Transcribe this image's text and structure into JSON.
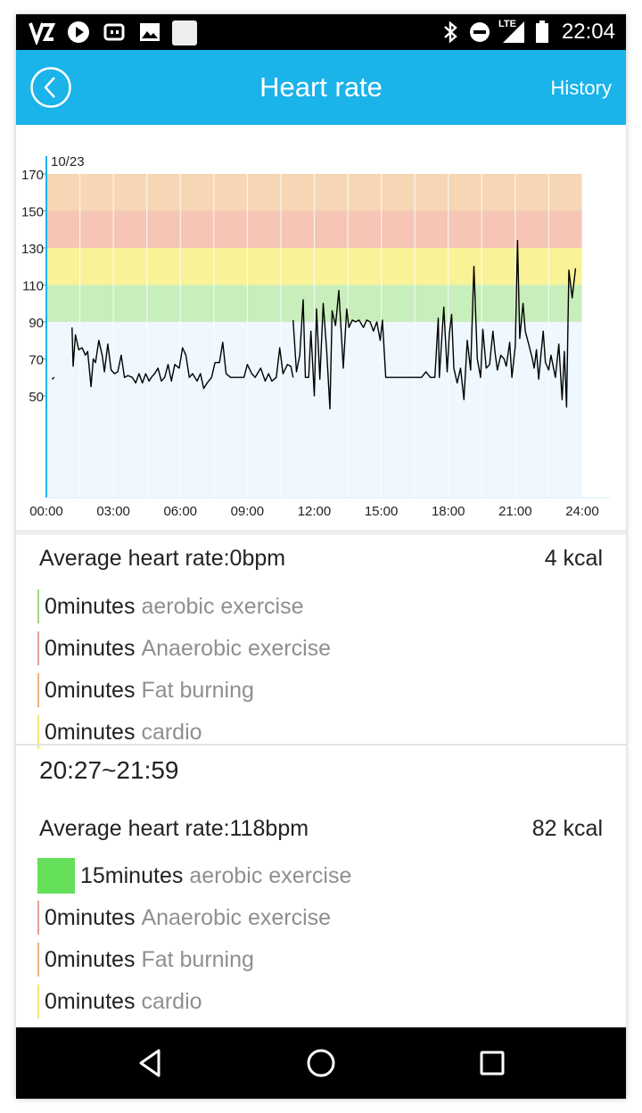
{
  "status_bar": {
    "time": "22:04",
    "network": "LTE",
    "left_icons": [
      "vpn-icon",
      "play-store-icon",
      "sync-icon",
      "image-icon",
      "white-square-icon"
    ],
    "right_icons": [
      "bluetooth-icon",
      "do-not-disturb-icon",
      "signal-icon",
      "battery-icon"
    ]
  },
  "app_bar": {
    "title": "Heart rate",
    "history_label": "History",
    "color": "#1ab3ea"
  },
  "chart_data": {
    "type": "line",
    "title": "10/23",
    "x_unit": "hours",
    "x_ticks": [
      "00:00",
      "03:00",
      "06:00",
      "09:00",
      "12:00",
      "15:00",
      "18:00",
      "21:00",
      "24:00"
    ],
    "xlim": [
      0,
      24.6
    ],
    "y_ticks": [
      170,
      150,
      130,
      110,
      90,
      70,
      50
    ],
    "ylim": [
      -5,
      170
    ],
    "zones": [
      {
        "from": -5,
        "to": 90,
        "color": "#eef8fe"
      },
      {
        "from": 90,
        "to": 110,
        "color": "#c8eebb"
      },
      {
        "from": 110,
        "to": 130,
        "color": "#f9f297"
      },
      {
        "from": 130,
        "to": 150,
        "color": "#f6c5b6"
      },
      {
        "from": 150,
        "to": 170,
        "color": "#f6d6b4"
      }
    ],
    "series": [
      {
        "color": "#000000",
        "segments": [
          [
            [
              0.25,
              59
            ],
            [
              0.35,
              60
            ]
          ],
          [
            [
              1.15,
              87
            ],
            [
              1.2,
              66
            ],
            [
              1.3,
              83
            ],
            [
              1.45,
              75
            ],
            [
              1.6,
              76
            ],
            [
              1.75,
              72
            ],
            [
              1.85,
              74
            ],
            [
              2.0,
              55
            ],
            [
              2.1,
              70
            ],
            [
              2.2,
              68
            ],
            [
              2.35,
              80
            ],
            [
              2.5,
              72
            ],
            [
              2.6,
              63
            ],
            [
              2.75,
              78
            ],
            [
              2.9,
              64
            ],
            [
              3.05,
              62
            ],
            [
              3.2,
              63
            ],
            [
              3.35,
              72
            ],
            [
              3.5,
              60
            ],
            [
              3.65,
              61
            ],
            [
              3.85,
              60
            ],
            [
              4.0,
              57
            ],
            [
              4.15,
              62
            ],
            [
              4.3,
              57
            ],
            [
              4.45,
              62
            ],
            [
              4.6,
              58
            ],
            [
              4.7,
              60
            ],
            [
              4.85,
              62
            ],
            [
              5.0,
              65
            ],
            [
              5.15,
              58
            ],
            [
              5.3,
              60
            ],
            [
              5.45,
              67
            ],
            [
              5.6,
              58
            ],
            [
              5.75,
              67
            ],
            [
              5.95,
              65
            ],
            [
              6.1,
              76
            ],
            [
              6.25,
              72
            ],
            [
              6.4,
              60
            ],
            [
              6.55,
              62
            ],
            [
              6.75,
              58
            ],
            [
              6.9,
              62
            ],
            [
              7.05,
              54
            ],
            [
              7.2,
              57
            ],
            [
              7.4,
              60
            ],
            [
              7.55,
              68
            ],
            [
              7.75,
              68
            ],
            [
              7.9,
              79
            ],
            [
              8.05,
              62
            ],
            [
              8.25,
              60
            ],
            [
              8.55,
              60
            ],
            [
              8.85,
              60
            ],
            [
              9.0,
              67
            ],
            [
              9.2,
              62
            ],
            [
              9.35,
              60
            ],
            [
              9.6,
              65
            ],
            [
              9.8,
              58
            ],
            [
              9.95,
              62
            ],
            [
              10.1,
              58
            ],
            [
              10.3,
              60
            ],
            [
              10.45,
              76
            ],
            [
              10.6,
              62
            ],
            [
              10.8,
              67
            ],
            [
              10.95,
              66
            ],
            [
              11.05,
              60
            ]
          ],
          [
            [
              11.05,
              91
            ],
            [
              11.2,
              63
            ],
            [
              11.35,
              72
            ],
            [
              11.5,
              102
            ],
            [
              11.6,
              60
            ],
            [
              11.75,
              60
            ],
            [
              11.85,
              85
            ],
            [
              12.0,
              50
            ],
            [
              12.1,
              97
            ],
            [
              12.25,
              59
            ],
            [
              12.4,
              100
            ],
            [
              12.55,
              75
            ],
            [
              12.7,
              43
            ],
            [
              12.8,
              96
            ],
            [
              12.95,
              88
            ],
            [
              13.1,
              107
            ],
            [
              13.3,
              65
            ],
            [
              13.45,
              97
            ],
            [
              13.55,
              87
            ],
            [
              13.7,
              91
            ],
            [
              13.85,
              90
            ],
            [
              14.0,
              91
            ],
            [
              14.2,
              87
            ],
            [
              14.35,
              91
            ],
            [
              14.5,
              90
            ],
            [
              14.65,
              85
            ],
            [
              14.8,
              90
            ],
            [
              14.95,
              80
            ],
            [
              15.05,
              91
            ],
            [
              15.2,
              60
            ],
            [
              15.5,
              60
            ],
            [
              16.0,
              60
            ],
            [
              16.5,
              60
            ],
            [
              16.8,
              60
            ],
            [
              17.0,
              63
            ],
            [
              17.2,
              60
            ],
            [
              17.4,
              60
            ],
            [
              17.55,
              92
            ],
            [
              17.6,
              60
            ],
            [
              17.8,
              98
            ],
            [
              17.95,
              63
            ],
            [
              18.05,
              84
            ],
            [
              18.15,
              94
            ],
            [
              18.25,
              65
            ],
            [
              18.4,
              57
            ],
            [
              18.55,
              65
            ],
            [
              18.7,
              48
            ],
            [
              18.85,
              80
            ],
            [
              19.0,
              64
            ],
            [
              19.15,
              120
            ],
            [
              19.3,
              70
            ],
            [
              19.45,
              60
            ],
            [
              19.55,
              86
            ],
            [
              19.7,
              65
            ],
            [
              19.85,
              67
            ],
            [
              20.0,
              85
            ],
            [
              20.1,
              73
            ],
            [
              20.2,
              64
            ],
            [
              20.35,
              72
            ],
            [
              20.5,
              70
            ],
            [
              20.6,
              66
            ],
            [
              20.75,
              79
            ],
            [
              20.85,
              60
            ],
            [
              21.0,
              77
            ],
            [
              21.1,
              134
            ],
            [
              21.2,
              81
            ],
            [
              21.35,
              100
            ],
            [
              21.45,
              85
            ],
            [
              21.6,
              78
            ],
            [
              21.75,
              71
            ],
            [
              21.85,
              65
            ],
            [
              21.95,
              75
            ],
            [
              22.05,
              59
            ],
            [
              22.25,
              85
            ],
            [
              22.35,
              68
            ],
            [
              22.5,
              64
            ],
            [
              22.6,
              72
            ],
            [
              22.8,
              60
            ],
            [
              22.95,
              78
            ],
            [
              23.1,
              48
            ],
            [
              23.2,
              74
            ],
            [
              23.3,
              44
            ],
            [
              23.4,
              118
            ],
            [
              23.55,
              103
            ],
            [
              23.7,
              119
            ]
          ]
        ]
      }
    ]
  },
  "summary_day": {
    "average_label": "Average heart rate:0bpm",
    "kcal": "4 kcal",
    "stats": [
      {
        "value": "0minutes",
        "label": "aerobic exercise",
        "color": "#9ad886",
        "fill": 0
      },
      {
        "value": "0minutes",
        "label": "Anaerobic exercise",
        "color": "#e8a093",
        "fill": 0
      },
      {
        "value": "0minutes",
        "label": "Fat burning",
        "color": "#eab37f",
        "fill": 0
      },
      {
        "value": "0minutes",
        "label": "cardio",
        "color": "#f0e878",
        "fill": 0
      }
    ]
  },
  "summary_session": {
    "time_range": "20:27~21:59",
    "average_label": "Average heart rate:118bpm",
    "kcal": "82 kcal",
    "stats": [
      {
        "value": "15minutes",
        "label": "aerobic exercise",
        "color": "#66e05a",
        "fill": 1
      },
      {
        "value": "0minutes",
        "label": "Anaerobic exercise",
        "color": "#e8a093",
        "fill": 0
      },
      {
        "value": "0minutes",
        "label": "Fat burning",
        "color": "#eab37f",
        "fill": 0
      },
      {
        "value": "0minutes",
        "label": "cardio",
        "color": "#f0e878",
        "fill": 0
      }
    ]
  },
  "nav_bar": {
    "icons": [
      "back-triangle-icon",
      "home-circle-icon",
      "recents-square-icon"
    ]
  }
}
